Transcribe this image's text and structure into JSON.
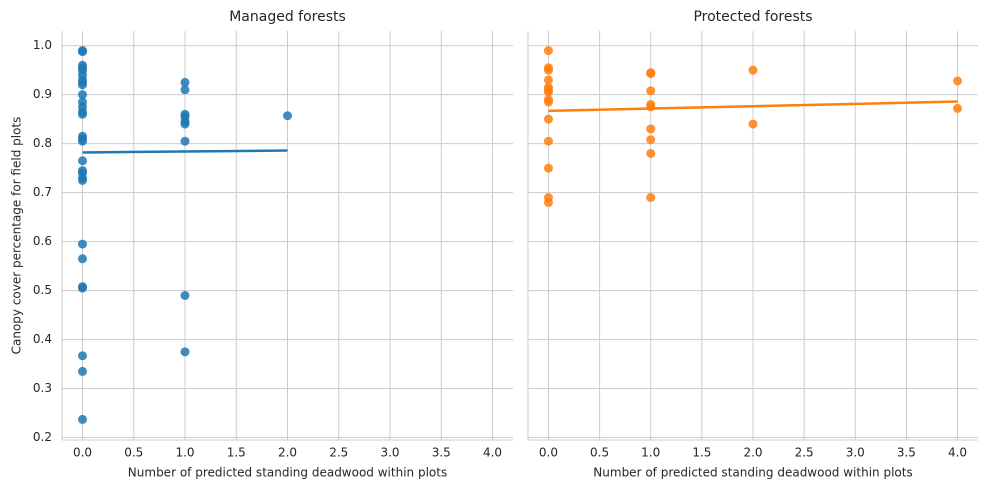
{
  "chart_data": [
    {
      "type": "scatter",
      "title": "Managed forests",
      "xlabel": "Number of predicted standing deadwood within plots",
      "ylabel": "Canopy cover percentage for field plots",
      "color": "#1f77b4",
      "grid": true,
      "ytick_labels": true,
      "x": [
        0,
        0,
        0,
        0,
        0,
        0,
        0,
        0,
        0,
        0,
        0,
        0,
        0,
        0,
        0,
        0,
        0,
        0,
        0,
        0,
        0,
        0,
        0,
        0,
        0,
        0,
        0,
        0,
        0,
        1,
        1,
        1,
        1,
        1,
        1,
        1,
        1,
        1,
        2
      ],
      "values": [
        0.99,
        0.988,
        0.96,
        0.955,
        0.95,
        0.94,
        0.93,
        0.925,
        0.92,
        0.9,
        0.885,
        0.875,
        0.865,
        0.86,
        0.815,
        0.81,
        0.805,
        0.765,
        0.745,
        0.74,
        0.73,
        0.725,
        0.595,
        0.565,
        0.508,
        0.505,
        0.367,
        0.335,
        0.237,
        0.925,
        0.91,
        0.86,
        0.855,
        0.845,
        0.84,
        0.805,
        0.49,
        0.375,
        0.857
      ],
      "fit_x": [
        0,
        2
      ],
      "fit_values": [
        0.782,
        0.786
      ],
      "xlim": [
        -0.2,
        4.2
      ],
      "ylim": [
        0.195,
        1.03
      ],
      "xticks": [
        {
          "value": 0,
          "label": "0.0"
        },
        0.5,
        {
          "value": 1,
          "label": "1.0"
        },
        1.5,
        {
          "value": 2,
          "label": "2.0"
        },
        2.5,
        {
          "value": 3,
          "label": "3.0"
        },
        3.5,
        {
          "value": 4,
          "label": "4.0"
        }
      ],
      "yticks": [
        0.2,
        0.3,
        0.4,
        0.5,
        0.6,
        0.7,
        0.8,
        0.9,
        {
          "value": 1,
          "label": "1.0"
        }
      ]
    },
    {
      "type": "scatter",
      "title": "Protected forests",
      "xlabel": "Number of predicted standing deadwood within plots",
      "color": "#ff7f0e",
      "grid": true,
      "ytick_labels": false,
      "x": [
        0,
        0,
        0,
        0,
        0,
        0,
        0,
        0,
        0,
        0,
        0,
        0,
        0,
        0,
        1,
        1,
        1,
        1,
        1,
        1,
        1,
        1,
        1,
        2,
        2,
        4,
        4
      ],
      "values": [
        0.99,
        0.955,
        0.95,
        0.93,
        0.915,
        0.91,
        0.905,
        0.89,
        0.885,
        0.85,
        0.805,
        0.75,
        0.69,
        0.68,
        0.945,
        0.943,
        0.908,
        0.88,
        0.875,
        0.83,
        0.808,
        0.78,
        0.69,
        0.95,
        0.84,
        0.928,
        0.872
      ],
      "fit_x": [
        0,
        4
      ],
      "fit_values": [
        0.867,
        0.886
      ],
      "xlim": [
        -0.2,
        4.2
      ],
      "ylim": [
        0.195,
        1.03
      ],
      "xticks": [
        {
          "value": 0,
          "label": "0.0"
        },
        0.5,
        {
          "value": 1,
          "label": "1.0"
        },
        1.5,
        {
          "value": 2,
          "label": "2.0"
        },
        2.5,
        {
          "value": 3,
          "label": "3.0"
        },
        3.5,
        {
          "value": 4,
          "label": "4.0"
        }
      ],
      "yticks": [
        0.2,
        0.3,
        0.4,
        0.5,
        0.6,
        0.7,
        0.8,
        0.9,
        {
          "value": 1,
          "label": "1.0"
        }
      ]
    }
  ]
}
